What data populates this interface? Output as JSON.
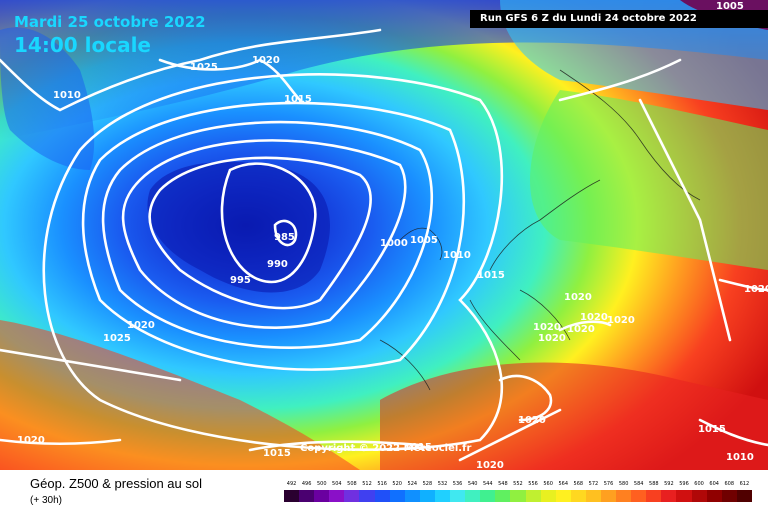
{
  "header": {
    "date": "Mardi 25 octobre 2022",
    "local_time": "14:00 locale",
    "run": "Run GFS 6 Z du Lundi 24 octobre 2022"
  },
  "copyright": "Copyright © 2022 Meteociel.fr",
  "footer": {
    "title": "Géop. Z500 & pression au sol",
    "subtitle": "(+ 30h)"
  },
  "legend": {
    "values": [
      "492",
      "496",
      "500",
      "504",
      "508",
      "512",
      "516",
      "520",
      "524",
      "528",
      "532",
      "536",
      "540",
      "544",
      "548",
      "552",
      "556",
      "560",
      "564",
      "568",
      "572",
      "576",
      "580",
      "584",
      "588",
      "592",
      "596",
      "600",
      "604",
      "608",
      "612"
    ],
    "colors": [
      "#2a0030",
      "#4a0070",
      "#6a00a0",
      "#8a10c8",
      "#7030e0",
      "#4040f0",
      "#2050f8",
      "#1070ff",
      "#1090ff",
      "#10b0ff",
      "#20d0ff",
      "#40e8f0",
      "#40f0c0",
      "#40f090",
      "#60f060",
      "#90f040",
      "#c0f030",
      "#e8f020",
      "#fff020",
      "#ffd820",
      "#ffc020",
      "#ffa020",
      "#ff8020",
      "#ff6020",
      "#f84020",
      "#e82020",
      "#d01010",
      "#b00808",
      "#900000",
      "#700000",
      "#500000"
    ]
  },
  "isobars": [
    {
      "value": "1025",
      "id": "a"
    },
    {
      "value": "1020",
      "id": "b"
    },
    {
      "value": "1015",
      "id": "c"
    },
    {
      "value": "1010",
      "id": "d"
    },
    {
      "value": "985",
      "id": "e"
    },
    {
      "value": "990",
      "id": "f"
    },
    {
      "value": "995",
      "id": "g"
    },
    {
      "value": "1000",
      "id": "h"
    },
    {
      "value": "1005",
      "id": "i"
    },
    {
      "value": "1010",
      "id": "j"
    },
    {
      "value": "1015",
      "id": "k"
    },
    {
      "value": "1020",
      "id": "l"
    },
    {
      "value": "1025",
      "id": "m"
    },
    {
      "value": "1020",
      "id": "n"
    },
    {
      "value": "1020",
      "id": "o"
    },
    {
      "value": "1020",
      "id": "p"
    },
    {
      "value": "1020",
      "id": "q"
    },
    {
      "value": "1020",
      "id": "r"
    },
    {
      "value": "1020",
      "id": "s"
    },
    {
      "value": "1020",
      "id": "t"
    },
    {
      "value": "1020",
      "id": "u"
    },
    {
      "value": "1015",
      "id": "v"
    },
    {
      "value": "1015",
      "id": "w"
    },
    {
      "value": "1015",
      "id": "x"
    },
    {
      "value": "1010",
      "id": "y"
    },
    {
      "value": "1020",
      "id": "z"
    },
    {
      "value": "1005",
      "id": "aa"
    },
    {
      "value": "1020",
      "id": "bb"
    }
  ]
}
